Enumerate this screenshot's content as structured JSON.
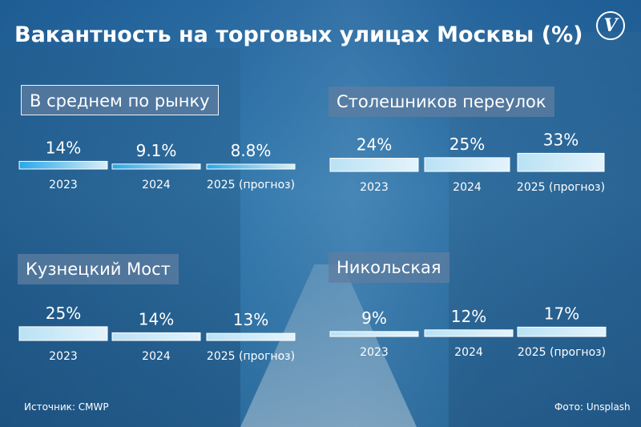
{
  "title": "Вакантность на торговых улицах Москвы (%)",
  "logo_glyph": "V",
  "source": "Источник: CMWP",
  "photo_credit": "Фото: Unsplash",
  "colors": {
    "bar_blue": "#29a7e8",
    "bar_light": "#e4f3fb",
    "text": "#ffffff"
  },
  "chart_data": [
    {
      "type": "bar",
      "title": "В среднем по рынку",
      "categories": [
        "2023",
        "2024",
        "2025 (прогноз)"
      ],
      "values": [
        14,
        9.1,
        8.8
      ],
      "value_labels": [
        "14%",
        "9.1%",
        "8.8%"
      ]
    },
    {
      "type": "bar",
      "title": "Столешников переулок",
      "categories": [
        "2023",
        "2024",
        "2025 (прогноз)"
      ],
      "values": [
        24,
        25,
        33
      ],
      "value_labels": [
        "24%",
        "25%",
        "33%"
      ]
    },
    {
      "type": "bar",
      "title": "Кузнецкий Мост",
      "categories": [
        "2023",
        "2024",
        "2025 (прогноз)"
      ],
      "values": [
        25,
        14,
        13
      ],
      "value_labels": [
        "25%",
        "14%",
        "13%"
      ]
    },
    {
      "type": "bar",
      "title": "Никольская",
      "categories": [
        "2023",
        "2024",
        "2025 (прогноз)"
      ],
      "values": [
        9,
        12,
        17
      ],
      "value_labels": [
        "9%",
        "12%",
        "17%"
      ]
    }
  ]
}
